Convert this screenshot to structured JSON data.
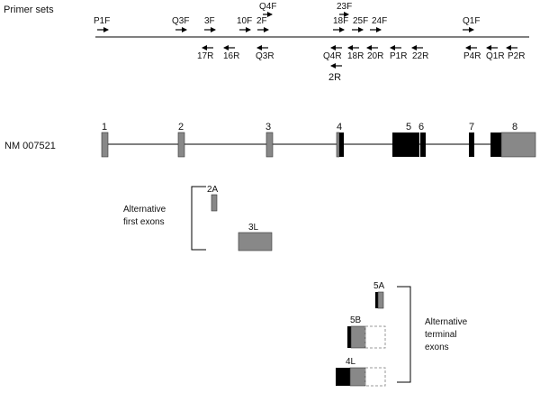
{
  "primer_header": "Primer sets",
  "primers": {
    "forward_top": [
      "Q4F",
      "23F"
    ],
    "forward_main": [
      "P1F",
      "Q3F",
      "3F",
      "10F",
      "2F",
      "18F",
      "25F",
      "24F",
      "Q1F"
    ],
    "reverse": [
      "17R",
      "16R",
      "Q3R",
      "Q4R",
      "18R",
      "20R",
      "P1R",
      "22R",
      "P4R",
      "Q1R",
      "P2R"
    ],
    "reverse_extra": [
      "2R"
    ]
  },
  "transcript": {
    "name": "NM 007521",
    "exons": [
      "1",
      "2",
      "3",
      "4",
      "5",
      "6",
      "7",
      "8"
    ]
  },
  "alt_first": {
    "label_line1": "Alternative",
    "label_line2": "first exons",
    "exons": [
      "2A",
      "3L"
    ]
  },
  "alt_terminal": {
    "label_line1": "Alternative",
    "label_line2": "terminal",
    "label_line3": "exons",
    "exons": [
      "5A",
      "5B",
      "4L"
    ]
  },
  "colors": {
    "coding": "#000000",
    "utr": "#888888",
    "line": "#000000",
    "dashed": "#999999"
  }
}
